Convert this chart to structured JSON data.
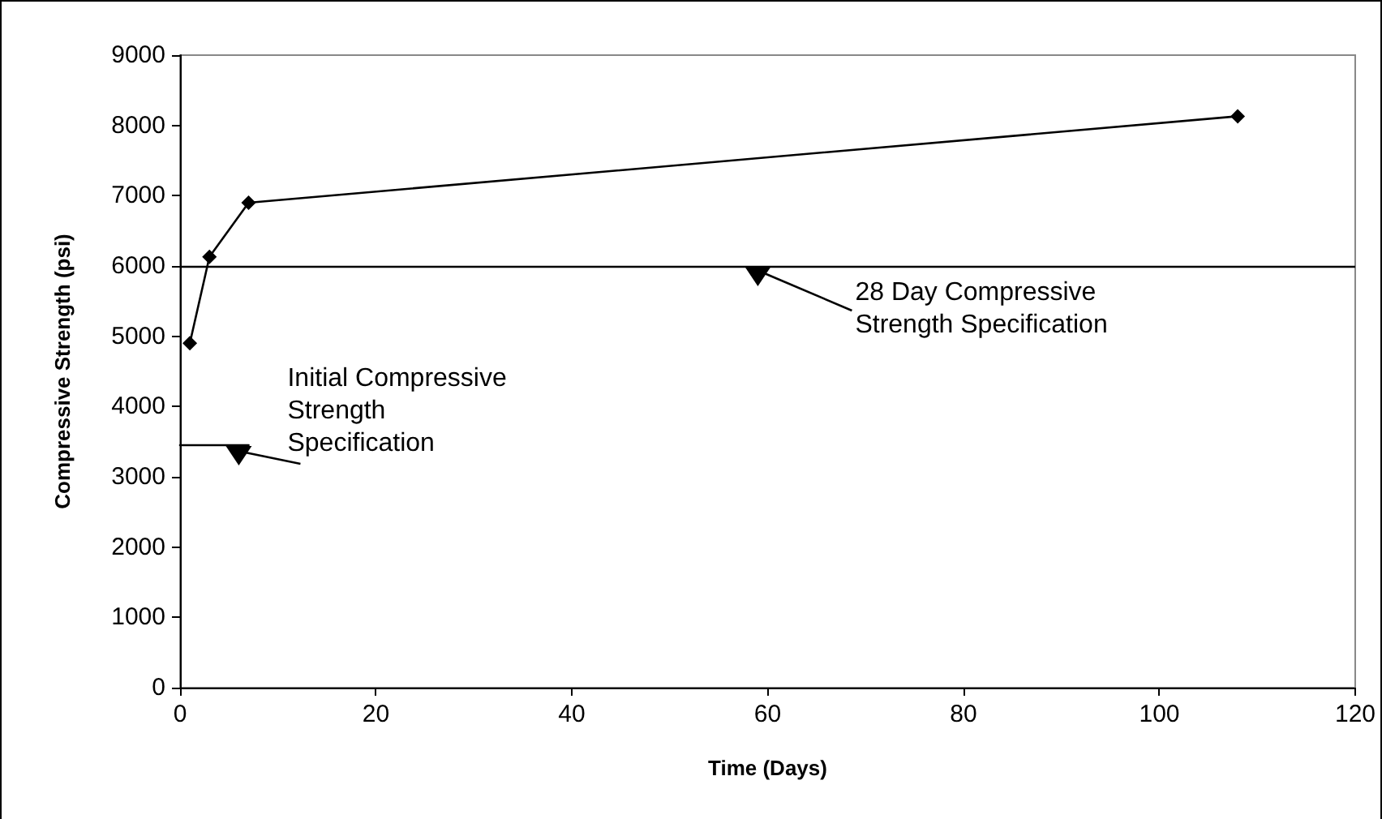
{
  "chart_data": {
    "type": "line",
    "xlabel": "Time (Days)",
    "ylabel": "Compressive Strength (psi)",
    "series": [
      {
        "color": "#000000",
        "x": [
          1,
          3,
          7,
          108
        ],
        "values": [
          4900,
          6130,
          6900,
          8130
        ]
      },
      {
        "color": "#000000",
        "x": [
          0,
          7
        ],
        "values": [
          3450,
          3450
        ],
        "marker": "none"
      }
    ],
    "ref_lines": [
      {
        "axis": "y",
        "value": 6000,
        "color": "#000000"
      }
    ],
    "annotations": [
      {
        "text": "28 Day Compressive\nStrength Specification",
        "x": 59,
        "y": 5850
      },
      {
        "text": "Initial Compressive\nStrength\nSpecification",
        "x": 6,
        "y": 3300
      }
    ],
    "xlim": [
      0,
      120
    ],
    "xticks": [
      0,
      20,
      40,
      60,
      80,
      100,
      120
    ],
    "ylim": [
      0,
      9000
    ],
    "yticks": [
      0,
      1000,
      2000,
      3000,
      4000,
      5000,
      6000,
      7000,
      8000,
      9000
    ],
    "marker": "diamond",
    "grid": false
  }
}
